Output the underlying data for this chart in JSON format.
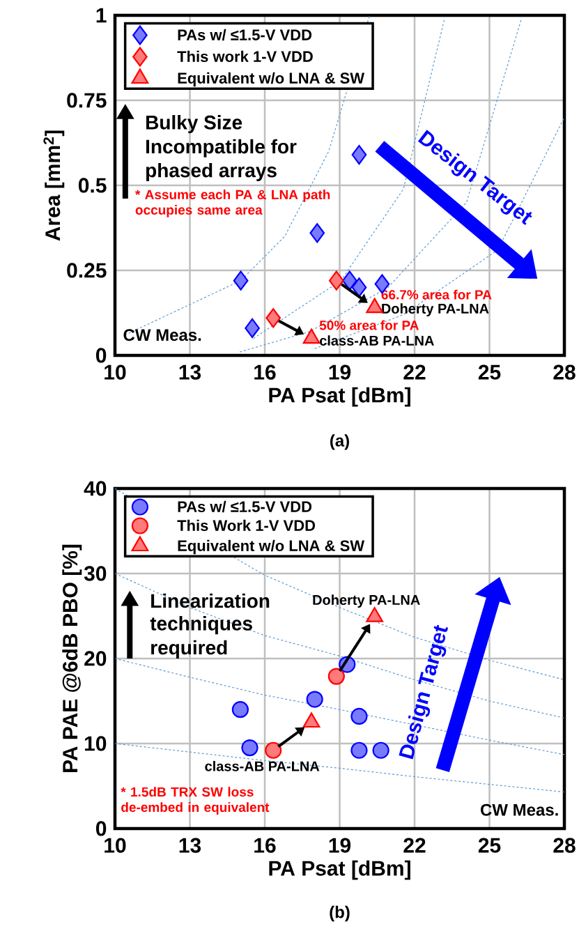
{
  "chart_data": [
    {
      "type": "scatter",
      "xlabel": "PA Psat [dBm]",
      "ylabel": "Area [mm$^{2}$]",
      "xlim": [
        10,
        28
      ],
      "ylim": [
        0,
        1
      ],
      "xticks": [
        10,
        13,
        16,
        19,
        22,
        25,
        28
      ],
      "yticks": [
        0,
        0.25,
        0.5,
        0.75,
        1
      ],
      "grid": true,
      "legend": "top left",
      "series": [
        {
          "name": "PAs w/ ≤1.5-V VDD",
          "type": "scatter",
          "marker": "diamond",
          "color": "#0000ff",
          "x": [
            15.04,
            15.5,
            18.1,
            19.78,
            19.4,
            19.78,
            20.7
          ],
          "values": [
            0.22,
            0.08,
            0.36,
            0.59,
            0.22,
            0.2,
            0.21
          ]
        },
        {
          "name": "This work 1-V VDD",
          "type": "scatter",
          "marker": "diamond",
          "color": "#ff0000",
          "x": [
            18.87,
            16.34
          ],
          "values": [
            0.22,
            0.11
          ]
        },
        {
          "name": "Equivalent w/o LNA & SW",
          "type": "scatter",
          "marker": "triangle",
          "color": "#ff0000",
          "x": [
            20.4,
            17.87
          ],
          "values": [
            0.14,
            0.05
          ]
        },
        {
          "type": "line",
          "marker": "none",
          "line_style": "dashed",
          "color": "#5b9bd5",
          "x": [
            10.4,
            15.04,
            16.8,
            18.56,
            20.2
          ],
          "values": [
            0.06,
            0.22,
            0.35,
            0.6,
            1.0
          ]
        },
        {
          "type": "line",
          "marker": "none",
          "line_style": "dashed",
          "color": "#5b9bd5",
          "x": [
            15.55,
            19.05,
            21.56,
            23.2
          ],
          "values": [
            0.05,
            0.22,
            0.49,
            0.99
          ]
        },
        {
          "type": "line",
          "marker": "none",
          "line_style": "dashed",
          "color": "#5b9bd5",
          "x": [
            15.0,
            17.8,
            20.94,
            24.08,
            26.28
          ],
          "values": [
            0.01,
            0.07,
            0.2,
            0.45,
            0.99
          ]
        },
        {
          "type": "line",
          "marker": "none",
          "line_style": "dashed",
          "color": "#5b9bd5",
          "x": [
            18.0,
            21.56,
            25.33,
            28
          ],
          "values": [
            0.02,
            0.12,
            0.31,
            0.7
          ]
        }
      ],
      "annotations": [
        "Bulky Size",
        "Incompatible for",
        "phased arrays",
        "* Assume each PA & LNA path occupies same area",
        "CW Meas.",
        "Design Target",
        {
          "text": "66.7% area for PA",
          "x": 20.4,
          "y": 0.14
        },
        {
          "text": "Doherty PA-LNA",
          "x": 20.4,
          "y": 0.14
        },
        {
          "text": "50% area for PA",
          "x": 17.87,
          "y": 0.05
        },
        {
          "text": "class-AB  PA-LNA",
          "x": 17.87,
          "y": 0.05
        },
        "(a)"
      ]
    },
    {
      "type": "scatter",
      "xlabel": "PA Psat [dBm]",
      "ylabel": "PA PAE  @6dB PBO [%]",
      "xlim": [
        10,
        28
      ],
      "ylim": [
        0,
        40
      ],
      "xticks": [
        10,
        13,
        16,
        19,
        22,
        25,
        28
      ],
      "yticks": [
        0,
        10,
        20,
        30,
        40
      ],
      "grid": true,
      "legend": "top left",
      "series": [
        {
          "name": "PAs w/ ≤1.5-V VDD",
          "type": "scatter",
          "marker": "circle",
          "color": "#0000ff",
          "x": [
            15.02,
            15.4,
            18.0,
            19.3,
            19.78,
            19.78,
            20.65
          ],
          "values": [
            14.0,
            9.5,
            15.2,
            19.3,
            13.2,
            9.2,
            9.2
          ]
        },
        {
          "name": "This Work 1-V VDD",
          "type": "scatter",
          "marker": "circle",
          "color": "#ff0000",
          "x": [
            18.87,
            16.34
          ],
          "values": [
            17.9,
            9.2
          ]
        },
        {
          "name": "Equivalent w/o LNA & SW",
          "type": "scatter",
          "marker": "triangle",
          "color": "#ff0000",
          "x": [
            20.4,
            17.87
          ],
          "values": [
            24.9,
            12.5
          ]
        },
        {
          "type": "line",
          "marker": "none",
          "line_style": "dashed",
          "color": "#5b9bd5",
          "x": [
            10,
            16,
            19,
            22,
            25,
            28
          ],
          "values": [
            40,
            29.8,
            26,
            22.5,
            19.8,
            17.5
          ]
        },
        {
          "type": "line",
          "marker": "none",
          "line_style": "dashed",
          "color": "#5b9bd5",
          "x": [
            10,
            13,
            16,
            19,
            22,
            25,
            28
          ],
          "values": [
            30,
            26,
            22.7,
            20.3,
            17.5,
            15,
            13
          ]
        },
        {
          "type": "line",
          "marker": "none",
          "line_style": "dashed",
          "color": "#5b9bd5",
          "x": [
            10,
            13,
            16,
            19,
            22,
            25,
            28
          ],
          "values": [
            20,
            17.8,
            15.7,
            14,
            12.2,
            10.4,
            8.7
          ]
        },
        {
          "type": "line",
          "marker": "none",
          "line_style": "dashed",
          "color": "#5b9bd5",
          "x": [
            10,
            13,
            16,
            19,
            22,
            25,
            28
          ],
          "values": [
            10,
            9,
            8,
            7.1,
            6.1,
            5.2,
            4.3
          ]
        }
      ],
      "annotations": [
        "Linearization",
        "techniques",
        "required",
        {
          "text": "Doherty PA-LNA",
          "x": 20.4,
          "y": 24.9
        },
        {
          "text": "class-AB  PA-LNA",
          "x": 16.34,
          "y": 9.2
        },
        "* 1.5dB TRX SW loss de-embed in equivalent",
        "CW Meas.",
        "Design Target",
        "(b)"
      ]
    }
  ]
}
